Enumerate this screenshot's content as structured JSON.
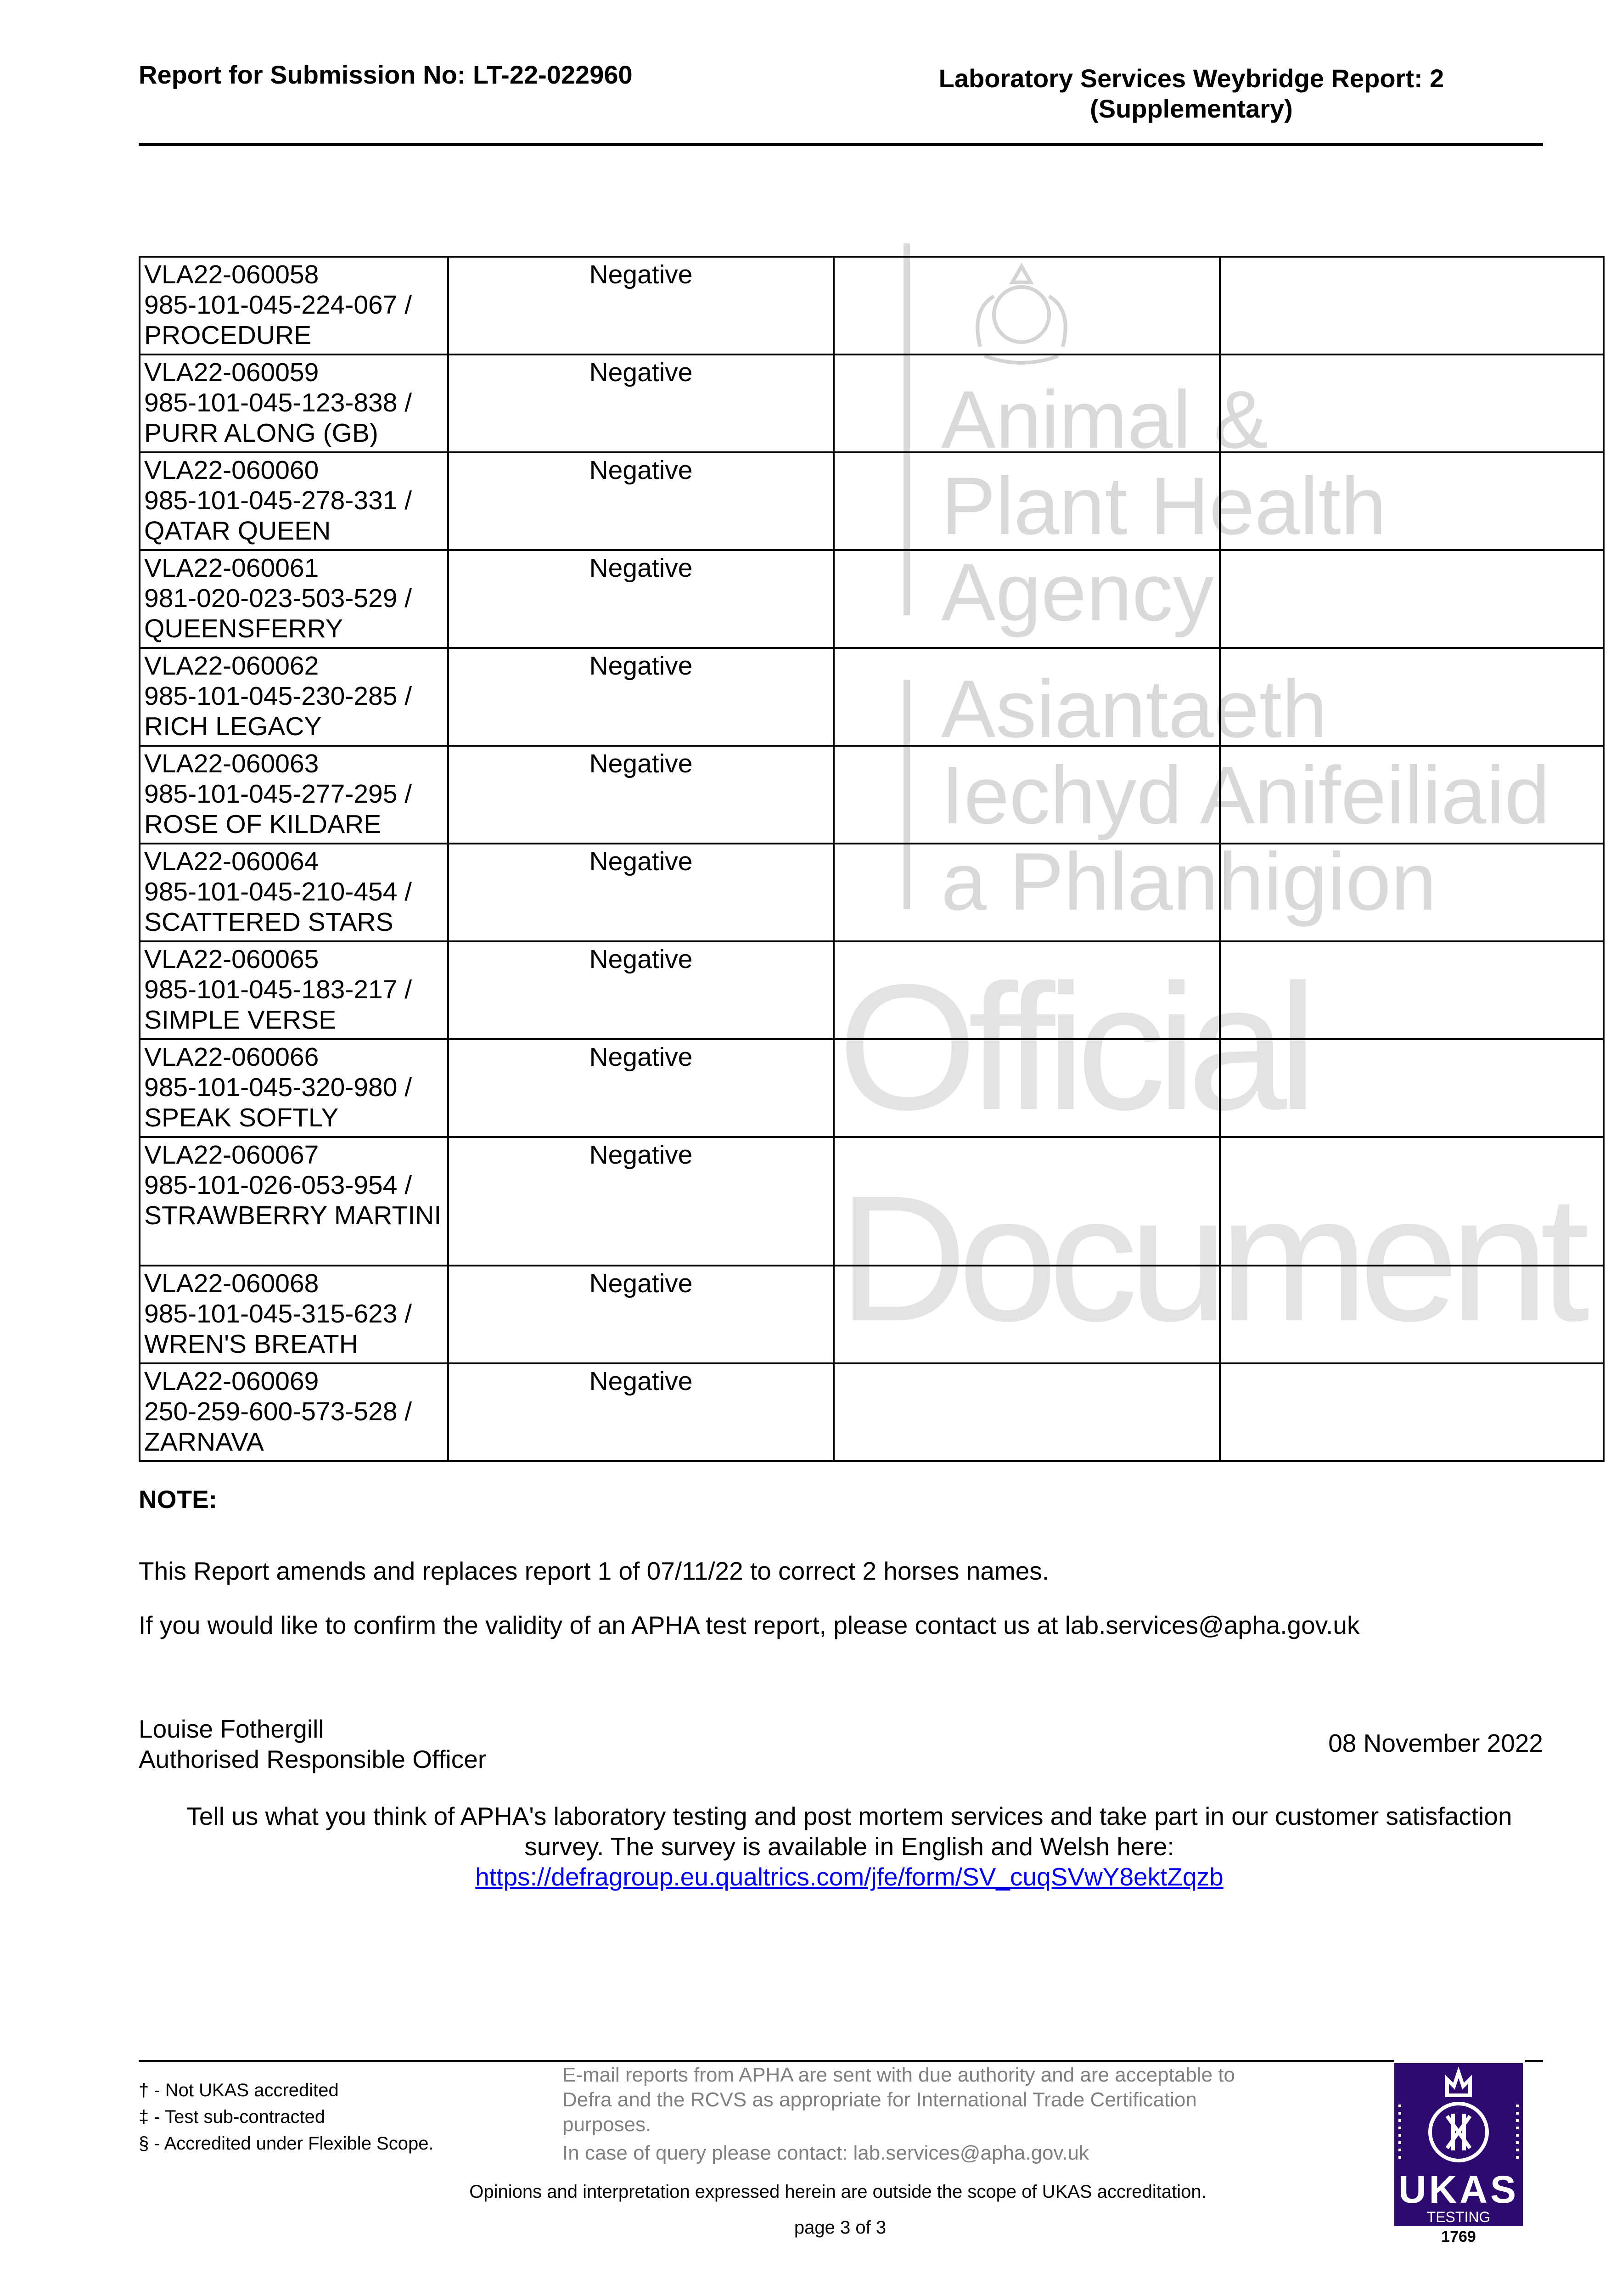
{
  "header": {
    "left": "Report for Submission No: LT-22-022960",
    "right_line1": "Laboratory Services Weybridge Report: 2",
    "right_line2": "(Supplementary)"
  },
  "watermark": {
    "agency_en": [
      "Animal &",
      "Plant Health",
      "Agency"
    ],
    "agency_cy": [
      "Asiantaeth",
      "Iechyd Anifeiliaid",
      "a Phlanhigion"
    ],
    "diagonal": [
      "Official",
      "Document"
    ]
  },
  "rows": [
    {
      "id": "VLA22-060058",
      "chip": "985-101-045-224-067 /",
      "name": "PROCEDURE",
      "result": "Negative"
    },
    {
      "id": "VLA22-060059",
      "chip": "985-101-045-123-838 /",
      "name": "PURR ALONG (GB)",
      "result": "Negative"
    },
    {
      "id": "VLA22-060060",
      "chip": "985-101-045-278-331 /",
      "name": "QATAR QUEEN",
      "result": "Negative"
    },
    {
      "id": "VLA22-060061",
      "chip": "981-020-023-503-529 /",
      "name": "QUEENSFERRY",
      "result": "Negative"
    },
    {
      "id": "VLA22-060062",
      "chip": "985-101-045-230-285 /",
      "name": "RICH LEGACY",
      "result": "Negative"
    },
    {
      "id": "VLA22-060063",
      "chip": "985-101-045-277-295 /",
      "name": "ROSE OF KILDARE",
      "result": "Negative"
    },
    {
      "id": "VLA22-060064",
      "chip": "985-101-045-210-454 /",
      "name": "SCATTERED STARS",
      "result": "Negative"
    },
    {
      "id": "VLA22-060065",
      "chip": "985-101-045-183-217 /",
      "name": "SIMPLE VERSE",
      "result": "Negative"
    },
    {
      "id": "VLA22-060066",
      "chip": "985-101-045-320-980 /",
      "name": "SPEAK SOFTLY",
      "result": "Negative"
    },
    {
      "id": "VLA22-060067",
      "chip": "985-101-026-053-954 /",
      "name": "STRAWBERRY MARTINI",
      "result": "Negative"
    },
    {
      "id": "VLA22-060068",
      "chip": "985-101-045-315-623 /",
      "name": "WREN'S BREATH",
      "result": "Negative"
    },
    {
      "id": "VLA22-060069",
      "chip": "250-259-600-573-528 /",
      "name": "ZARNAVA",
      "result": "Negative"
    }
  ],
  "note": {
    "title": "NOTE:",
    "line1": "This Report amends and replaces report 1 of 07/11/22 to correct 2 horses names.",
    "line2": "If you would like to confirm the validity of an APHA test report, please contact us at lab.services@apha.gov.uk"
  },
  "signature": {
    "name": "Louise Fothergill",
    "role": "Authorised Responsible Officer",
    "date": "08 November 2022"
  },
  "survey": {
    "line1": "Tell us what you think of APHA's laboratory testing and post mortem services and take part in our customer satisfaction",
    "line2": "survey. The survey is available in English and Welsh here:",
    "link": "https://defragroup.eu.qualtrics.com/jfe/form/SV_cuqSVwY8ektZqzb"
  },
  "footer": {
    "legend": [
      "† - Not UKAS accredited",
      "‡ - Test sub-contracted",
      "§ - Accredited under Flexible Scope."
    ],
    "email_note": [
      "E-mail reports from APHA are sent with due authority and are acceptable to",
      "Defra and the RCVS as appropriate for International Trade Certification",
      "purposes."
    ],
    "contact": "In case of query please contact: lab.services@apha.gov.uk",
    "opinions": "Opinions and interpretation expressed herein are outside the scope of UKAS accreditation.",
    "page": "page 3 of 3",
    "ukas": {
      "text": "UKAS",
      "sub": "TESTING",
      "number": "1769",
      "color": "#2e0a6e"
    }
  }
}
